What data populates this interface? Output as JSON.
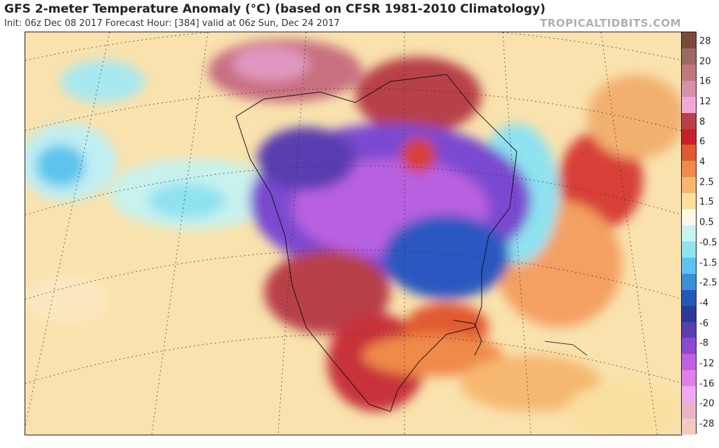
{
  "header": {
    "title": "GFS 2-meter Temperature Anomaly (°C) (based on CFSR 1981-2010 Climatology)",
    "subtitle": "Init: 06z Dec 08 2017   Forecast Hour: [384]   valid at 06z Sun, Dec 24 2017",
    "brand": "TROPICALTIDBITS.COM"
  },
  "colorbar": {
    "colors": [
      "#7a4a3a",
      "#9b6a60",
      "#c0787f",
      "#d592a8",
      "#f0a8d8",
      "#b8404a",
      "#c8202a",
      "#e05a30",
      "#f08a48",
      "#f6b870",
      "#fadfa0",
      "#fdf8e8",
      "#c8f4f0",
      "#8fe2f0",
      "#5cc4ee",
      "#3a90d8",
      "#2458b8",
      "#2a3896",
      "#5a3eb0",
      "#8c4ad0",
      "#c060e0",
      "#e080e8",
      "#f0a8f0",
      "#e8b4c8",
      "#f5c8c0"
    ],
    "labels": [
      "28",
      "20",
      "16",
      "12",
      "8",
      "6",
      "4",
      "2.5",
      "1.5",
      "0.5",
      "-0.5",
      "-1.5",
      "-2.5",
      "-4",
      "-6",
      "-8",
      "-12",
      "-16",
      "-20",
      "-28"
    ]
  }
}
